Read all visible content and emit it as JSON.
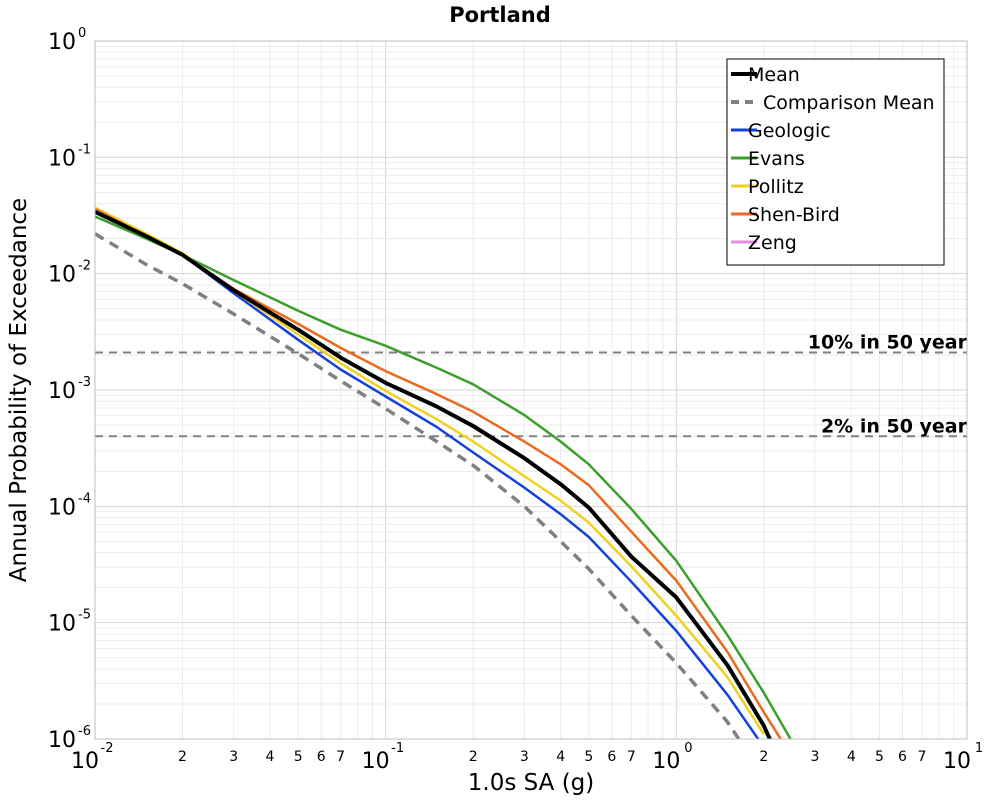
{
  "chart_data": {
    "type": "line",
    "title": "Portland",
    "xlabel": "1.0s SA (g)",
    "ylabel": "Annual Probability of Exceedance",
    "xscale": "log",
    "yscale": "log",
    "xlim": [
      0.01,
      10
    ],
    "ylim": [
      1e-06,
      1
    ],
    "grid": true,
    "legend_position": "top-right",
    "x_major_ticks": [
      {
        "base": "10",
        "exp": "-2"
      },
      {
        "base": "10",
        "exp": "-1"
      },
      {
        "base": "10",
        "exp": "0"
      },
      {
        "base": "10",
        "exp": "1"
      }
    ],
    "x_minor_tick_labels": [
      "2",
      "3",
      "4",
      "5",
      "6",
      "7"
    ],
    "y_major_ticks": [
      {
        "base": "10",
        "exp": "0"
      },
      {
        "base": "10",
        "exp": "-1"
      },
      {
        "base": "10",
        "exp": "-2"
      },
      {
        "base": "10",
        "exp": "-3"
      },
      {
        "base": "10",
        "exp": "-4"
      },
      {
        "base": "10",
        "exp": "-5"
      },
      {
        "base": "10",
        "exp": "-6"
      }
    ],
    "reference_lines": [
      {
        "label": "10% in 50 year",
        "y": 0.0021,
        "color": "#808080"
      },
      {
        "label": "2% in 50 year",
        "y": 0.0004,
        "color": "#808080"
      }
    ],
    "series": [
      {
        "name": "Mean",
        "color": "#000000",
        "dashed": false,
        "emphasis": "thick",
        "x": [
          0.01,
          0.015,
          0.02,
          0.03,
          0.05,
          0.07,
          0.1,
          0.15,
          0.2,
          0.3,
          0.4,
          0.5,
          0.7,
          1.0,
          1.5,
          2.0,
          2.3
        ],
        "y": [
          0.034,
          0.021,
          0.0145,
          0.0072,
          0.0033,
          0.0019,
          0.00115,
          0.00072,
          0.00049,
          0.00026,
          0.000155,
          9.75e-05,
          3.7e-05,
          1.65e-05,
          4.3e-06,
          1.3e-06,
          6e-07
        ]
      },
      {
        "name": "Comparison Mean",
        "color": "#808080",
        "dashed": true,
        "emphasis": "thick",
        "x": [
          0.01,
          0.015,
          0.02,
          0.03,
          0.05,
          0.07,
          0.1,
          0.15,
          0.2,
          0.3,
          0.4,
          0.5,
          0.7,
          1.0,
          1.5,
          1.8
        ],
        "y": [
          0.022,
          0.012,
          0.0082,
          0.0045,
          0.00205,
          0.0012,
          0.00069,
          0.00036,
          0.000225,
          0.0001,
          5e-05,
          2.9e-05,
          1.15e-05,
          4.5e-06,
          1.4e-06,
          7e-07
        ]
      },
      {
        "name": "Geologic",
        "color": "#1540e0",
        "dashed": false,
        "emphasis": "normal",
        "x": [
          0.01,
          0.015,
          0.02,
          0.03,
          0.05,
          0.07,
          0.1,
          0.15,
          0.2,
          0.3,
          0.4,
          0.5,
          0.7,
          1.0,
          1.5,
          2.0
        ],
        "y": [
          0.034,
          0.021,
          0.0145,
          0.0068,
          0.0027,
          0.0015,
          0.00088,
          0.00048,
          0.00029,
          0.000145,
          8.55e-05,
          5.45e-05,
          2.25e-05,
          8.5e-06,
          2.4e-06,
          8.5e-07
        ]
      },
      {
        "name": "Evans",
        "color": "#3aa02a",
        "dashed": false,
        "emphasis": "normal",
        "x": [
          0.01,
          0.015,
          0.02,
          0.03,
          0.05,
          0.07,
          0.1,
          0.15,
          0.2,
          0.3,
          0.4,
          0.5,
          0.7,
          1.0,
          1.5,
          2.0,
          2.5
        ],
        "y": [
          0.031,
          0.02,
          0.0145,
          0.0088,
          0.0048,
          0.0033,
          0.0024,
          0.00155,
          0.00112,
          0.00061,
          0.00036,
          0.00023,
          9.5e-05,
          3.4e-05,
          7.8e-06,
          2.5e-06,
          9.5e-07
        ]
      },
      {
        "name": "Pollitz",
        "color": "#f0d020",
        "dashed": false,
        "emphasis": "normal",
        "x": [
          0.01,
          0.015,
          0.02,
          0.03,
          0.05,
          0.07,
          0.1,
          0.15,
          0.2,
          0.3,
          0.4,
          0.5,
          0.7,
          1.0,
          1.5,
          2.0
        ],
        "y": [
          0.037,
          0.022,
          0.015,
          0.0071,
          0.003,
          0.0017,
          0.00098,
          0.00056,
          0.00036,
          0.000182,
          0.000112,
          7.25e-05,
          3.05e-05,
          1.15e-05,
          3.4e-06,
          1.1e-06
        ]
      },
      {
        "name": "Shen-Bird",
        "color": "#ec6a1c",
        "dashed": false,
        "emphasis": "normal",
        "x": [
          0.01,
          0.015,
          0.02,
          0.03,
          0.05,
          0.07,
          0.1,
          0.15,
          0.2,
          0.3,
          0.4,
          0.5,
          0.7,
          1.0,
          1.5,
          2.0,
          2.5
        ],
        "y": [
          0.036,
          0.021,
          0.0145,
          0.0074,
          0.0037,
          0.0023,
          0.00145,
          0.00092,
          0.00065,
          0.00036,
          0.00023,
          0.000152,
          6.05e-05,
          2.3e-05,
          5.6e-06,
          1.7e-06,
          7e-07
        ]
      },
      {
        "name": "Zeng",
        "color": "#e58ee0",
        "dashed": false,
        "emphasis": "normal",
        "x": [
          0.01,
          0.015,
          0.02,
          0.03,
          0.05,
          0.07,
          0.1,
          0.15,
          0.2,
          0.3,
          0.4,
          0.5,
          0.7,
          1.0,
          1.5,
          2.0,
          2.3
        ],
        "y": [
          0.035,
          0.021,
          0.0145,
          0.0072,
          0.0033,
          0.0019,
          0.00114,
          0.00071,
          0.00048,
          0.000255,
          0.000152,
          9.6e-05,
          3.65e-05,
          1.63e-05,
          4.2e-06,
          1.3e-06,
          6e-07
        ]
      }
    ]
  }
}
